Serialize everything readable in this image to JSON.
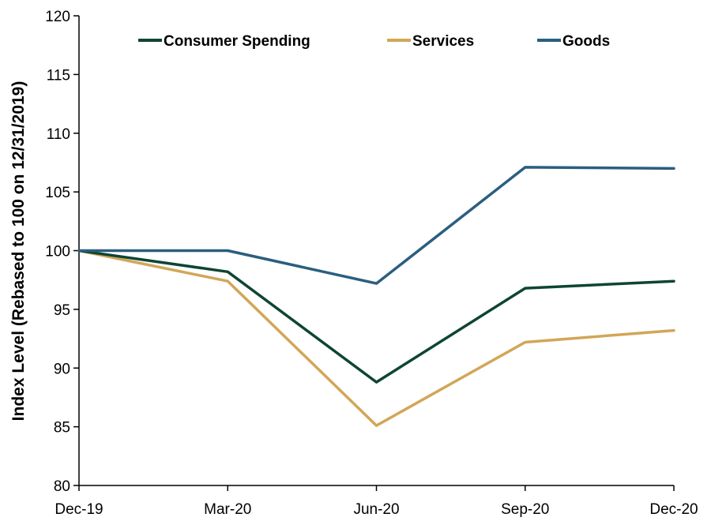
{
  "chart_data": {
    "type": "line",
    "title": "",
    "xlabel": "",
    "ylabel": "Index Level (Rebased to 100 on 12/31/2019)",
    "categories": [
      "Dec-19",
      "Mar-20",
      "Jun-20",
      "Sep-20",
      "Dec-20"
    ],
    "ylim": [
      80,
      120
    ],
    "yticks": [
      80,
      85,
      90,
      95,
      100,
      105,
      110,
      115,
      120
    ],
    "grid": false,
    "legend_position": "top",
    "series": [
      {
        "name": "Consumer Spending",
        "color": "#0e4535",
        "values": [
          100,
          98.2,
          88.8,
          96.8,
          97.4
        ]
      },
      {
        "name": "Services",
        "color": "#d2a657",
        "values": [
          100,
          97.4,
          85.1,
          92.2,
          93.2
        ]
      },
      {
        "name": "Goods",
        "color": "#2a5e80",
        "values": [
          100,
          100.0,
          97.2,
          107.1,
          107.0
        ]
      }
    ]
  }
}
